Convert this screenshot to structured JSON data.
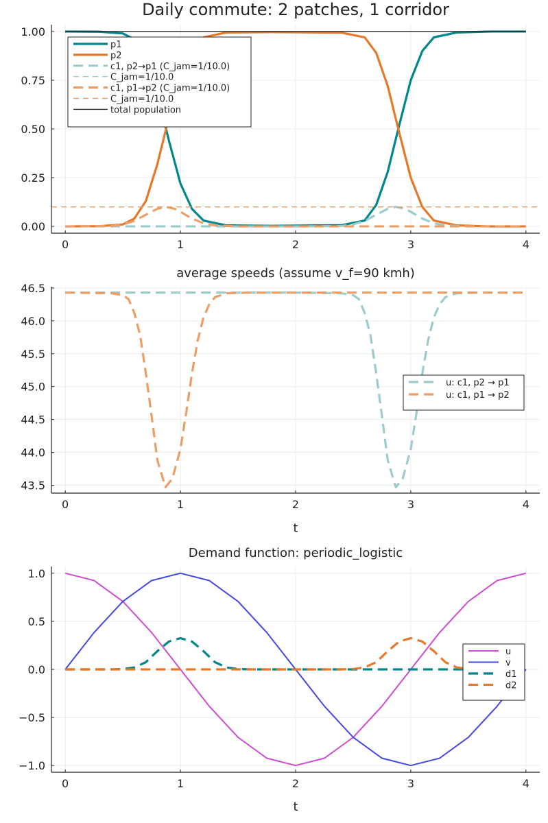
{
  "colors": {
    "teal": "#00868b",
    "orange": "#e6782a",
    "teal_light": "#9ccbcb",
    "orange_light": "#ec9e66",
    "black": "#222222",
    "magenta": "#cf4bcf",
    "blue": "#4646e6"
  },
  "chart_data": [
    {
      "type": "line",
      "title": "Daily commute: 2 patches, 1 corridor",
      "xlabel": "",
      "ylabel": "",
      "xlim": [
        -0.12,
        4.12
      ],
      "ylim": [
        -0.035,
        1.035
      ],
      "xticks": [
        0,
        1,
        2,
        3,
        4
      ],
      "xtick_labels": [
        "0",
        "1",
        "2",
        "3",
        "4"
      ],
      "yticks": [
        0,
        0.25,
        0.5,
        0.75,
        1.0
      ],
      "ytick_labels": [
        "0.00",
        "0.25",
        "0.50",
        "0.75",
        "1.00"
      ],
      "grid": true,
      "legend_position": "top-left",
      "series": [
        {
          "name": "p1",
          "color": "#00868b",
          "width": 3.2,
          "dash": "",
          "x": [
            0,
            0.3,
            0.5,
            0.6,
            0.7,
            0.8,
            0.9,
            1.0,
            1.1,
            1.2,
            1.4,
            1.8,
            2.4,
            2.6,
            2.7,
            2.8,
            2.9,
            3.0,
            3.1,
            3.2,
            3.4,
            3.7,
            4.0
          ],
          "y": [
            1.0,
            0.999,
            0.99,
            0.96,
            0.87,
            0.68,
            0.44,
            0.22,
            0.09,
            0.03,
            0.005,
            0.003,
            0.006,
            0.03,
            0.11,
            0.28,
            0.52,
            0.75,
            0.9,
            0.97,
            0.995,
            1.0,
            1.0
          ]
        },
        {
          "name": "p2",
          "color": "#e6782a",
          "width": 3.2,
          "dash": "",
          "x": [
            0,
            0.3,
            0.5,
            0.6,
            0.7,
            0.8,
            0.9,
            1.0,
            1.1,
            1.2,
            1.4,
            1.8,
            2.4,
            2.6,
            2.7,
            2.8,
            2.9,
            3.0,
            3.1,
            3.2,
            3.4,
            3.7,
            4.0
          ],
          "y": [
            0.0,
            0.001,
            0.01,
            0.04,
            0.13,
            0.32,
            0.56,
            0.78,
            0.91,
            0.97,
            0.995,
            0.997,
            0.994,
            0.97,
            0.89,
            0.72,
            0.48,
            0.25,
            0.1,
            0.03,
            0.005,
            0.0,
            0.0
          ]
        },
        {
          "name": "c1, p2→p1 (C_jam=1/10.0)",
          "color": "#9ccbcb",
          "width": 3.2,
          "dash": "14,8",
          "x": [
            0,
            0.5,
            1.0,
            1.5,
            2.0,
            2.4,
            2.5,
            2.6,
            2.7,
            2.8,
            2.87,
            2.95,
            3.0,
            3.1,
            3.2,
            3.3,
            3.5,
            4.0
          ],
          "y": [
            0.0,
            0.0,
            0.0,
            0.0,
            0.0,
            0.002,
            0.01,
            0.028,
            0.06,
            0.09,
            0.1,
            0.09,
            0.075,
            0.04,
            0.016,
            0.005,
            0.0,
            0.0
          ]
        },
        {
          "name": "C_jam=1/10.0",
          "color": "#9ccbcb",
          "width": 1.4,
          "dash": "8,6",
          "x": [
            -0.12,
            4.12
          ],
          "y": [
            0.1,
            0.1
          ]
        },
        {
          "name": "c1, p1→p2 (C_jam=1/10.0)",
          "color": "#ec9e66",
          "width": 3.2,
          "dash": "14,8",
          "x": [
            0,
            0.4,
            0.5,
            0.6,
            0.7,
            0.8,
            0.87,
            0.95,
            1.0,
            1.1,
            1.2,
            1.3,
            1.5,
            2.0,
            2.5,
            3.0,
            3.5,
            4.0
          ],
          "y": [
            0.0,
            0.002,
            0.01,
            0.028,
            0.06,
            0.09,
            0.1,
            0.09,
            0.075,
            0.04,
            0.016,
            0.005,
            0.0,
            0.0,
            0.0,
            0.0,
            0.0,
            0.0
          ]
        },
        {
          "name": "C_jam=1/10.0",
          "color": "#ec9e66",
          "width": 1.4,
          "dash": "8,6",
          "x": [
            -0.12,
            4.12
          ],
          "y": [
            0.1,
            0.1
          ]
        },
        {
          "name": "total population",
          "color": "#222222",
          "width": 1.4,
          "dash": "",
          "x": [
            0,
            4
          ],
          "y": [
            1.0,
            1.0
          ]
        }
      ]
    },
    {
      "type": "line",
      "title": "average speeds (assume v_f=90 kmh)",
      "xlabel": "t",
      "ylabel": "",
      "xlim": [
        -0.12,
        4.12
      ],
      "ylim": [
        43.38,
        46.52
      ],
      "xticks": [
        0,
        1,
        2,
        3,
        4
      ],
      "xtick_labels": [
        "0",
        "1",
        "2",
        "3",
        "4"
      ],
      "yticks": [
        43.5,
        44.0,
        44.5,
        45.0,
        45.5,
        46.0,
        46.5
      ],
      "ytick_labels": [
        "43.5",
        "44.0",
        "44.5",
        "45.0",
        "45.5",
        "46.0",
        "46.5"
      ],
      "grid": true,
      "legend_position": "right",
      "series": [
        {
          "name": "u: c1, p2 → p1",
          "color": "#9ccbcb",
          "width": 3.2,
          "dash": "14,8",
          "x": [
            0,
            0.5,
            1.0,
            1.5,
            2.0,
            2.4,
            2.5,
            2.55,
            2.6,
            2.65,
            2.7,
            2.75,
            2.8,
            2.87,
            2.93,
            3.0,
            3.05,
            3.1,
            3.15,
            3.2,
            3.25,
            3.3,
            3.4,
            3.6,
            4.0
          ],
          "y": [
            46.43,
            46.43,
            46.43,
            46.43,
            46.43,
            46.42,
            46.39,
            46.33,
            46.12,
            45.78,
            45.2,
            44.55,
            43.88,
            43.47,
            43.6,
            44.05,
            44.6,
            45.2,
            45.7,
            46.05,
            46.25,
            46.36,
            46.42,
            46.43,
            46.43
          ]
        },
        {
          "name": "u: c1, p1 → p2",
          "color": "#ec9e66",
          "width": 3.2,
          "dash": "14,8",
          "x": [
            0,
            0.4,
            0.5,
            0.55,
            0.6,
            0.65,
            0.7,
            0.75,
            0.8,
            0.87,
            0.93,
            1.0,
            1.05,
            1.1,
            1.15,
            1.2,
            1.25,
            1.3,
            1.4,
            1.6,
            2.0,
            2.5,
            3.0,
            3.5,
            4.0
          ],
          "y": [
            46.43,
            46.42,
            46.39,
            46.33,
            46.12,
            45.78,
            45.2,
            44.55,
            43.88,
            43.47,
            43.6,
            44.05,
            44.6,
            45.2,
            45.7,
            46.05,
            46.25,
            46.36,
            46.42,
            46.43,
            46.43,
            46.43,
            46.43,
            46.43,
            46.43
          ]
        }
      ]
    },
    {
      "type": "line",
      "title": "Demand function: periodic_logistic",
      "xlabel": "t",
      "ylabel": "",
      "xlim": [
        -0.12,
        4.12
      ],
      "ylim": [
        -1.07,
        1.07
      ],
      "xticks": [
        0,
        1,
        2,
        3,
        4
      ],
      "xtick_labels": [
        "0",
        "1",
        "2",
        "3",
        "4"
      ],
      "yticks": [
        -1.0,
        -0.5,
        0.0,
        0.5,
        1.0
      ],
      "ytick_labels": [
        "−1.0",
        "−0.5",
        "0.0",
        "0.5",
        "1.0"
      ],
      "grid": true,
      "legend_position": "right",
      "series": [
        {
          "name": "u",
          "color": "#cf4bcf",
          "width": 2,
          "dash": "",
          "x": [
            0,
            0.25,
            0.5,
            0.75,
            1.0,
            1.25,
            1.5,
            1.75,
            2.0,
            2.25,
            2.5,
            2.75,
            3.0,
            3.25,
            3.5,
            3.75,
            4.0
          ],
          "y": [
            1.0,
            0.924,
            0.707,
            0.383,
            0.0,
            -0.383,
            -0.707,
            -0.924,
            -1.0,
            -0.924,
            -0.707,
            -0.383,
            0.0,
            0.383,
            0.707,
            0.924,
            1.0
          ]
        },
        {
          "name": "v",
          "color": "#4646e6",
          "width": 2,
          "dash": "",
          "x": [
            0,
            0.25,
            0.5,
            0.75,
            1.0,
            1.25,
            1.5,
            1.75,
            2.0,
            2.25,
            2.5,
            2.75,
            3.0,
            3.25,
            3.5,
            3.75,
            4.0
          ],
          "y": [
            0.0,
            0.383,
            0.707,
            0.924,
            1.0,
            0.924,
            0.707,
            0.383,
            0.0,
            -0.383,
            -0.707,
            -0.924,
            -1.0,
            -0.924,
            -0.707,
            -0.383,
            0.0
          ]
        },
        {
          "name": "d1",
          "color": "#00868b",
          "width": 3.2,
          "dash": "14,8",
          "x": [
            0,
            0.4,
            0.5,
            0.6,
            0.7,
            0.8,
            0.9,
            1.0,
            1.1,
            1.2,
            1.3,
            1.4,
            1.5,
            1.6,
            2.0,
            2.5,
            3.0,
            3.5,
            4.0
          ],
          "y": [
            0.0,
            0.0,
            0.004,
            0.02,
            0.075,
            0.19,
            0.29,
            0.325,
            0.29,
            0.19,
            0.075,
            0.02,
            0.004,
            0.0,
            0.0,
            0.0,
            0.0,
            0.0,
            0.0
          ]
        },
        {
          "name": "d2",
          "color": "#e6782a",
          "width": 3.2,
          "dash": "14,8",
          "x": [
            0,
            0.5,
            1.0,
            1.5,
            2.0,
            2.4,
            2.5,
            2.6,
            2.7,
            2.8,
            2.9,
            3.0,
            3.1,
            3.2,
            3.3,
            3.4,
            3.5,
            3.6,
            4.0
          ],
          "y": [
            0.0,
            0.0,
            0.0,
            0.0,
            0.0,
            0.0,
            0.004,
            0.02,
            0.075,
            0.19,
            0.29,
            0.325,
            0.29,
            0.19,
            0.075,
            0.02,
            0.004,
            0.0,
            0.0
          ]
        }
      ]
    }
  ]
}
